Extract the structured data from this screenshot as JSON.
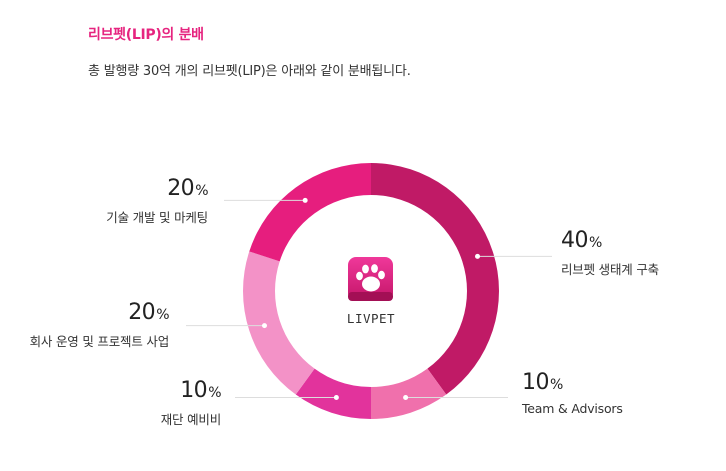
{
  "header": {
    "title": "리브펫(LIP)의 분배",
    "subtitle": "총 발행량 30억 개의 리브펫(LIP)은 아래와 같이 분배됩니다."
  },
  "center": {
    "logo": "paw-logo-icon",
    "text": "LIVPET"
  },
  "chart_data": {
    "type": "pie",
    "variant": "donut",
    "unit": "%",
    "series": [
      {
        "label": "리브펫 생태계 구축",
        "value": 40,
        "display": "40",
        "color": "#c01a66"
      },
      {
        "label": "Team & Advisors",
        "value": 10,
        "display": "10",
        "color": "#f070ac"
      },
      {
        "label": "재단 예비비",
        "value": 10,
        "display": "10",
        "color": "#e2339c"
      },
      {
        "label": "회사 운영 및 프로젝트 사업",
        "value": 20,
        "display": "20",
        "color": "#f392c7"
      },
      {
        "label": "기술 개발 및 마케팅",
        "value": 20,
        "display": "20",
        "color": "#e61e7e"
      }
    ]
  },
  "colors": {
    "accent": "#e6247f",
    "text": "#333333",
    "leader_line": "#dddddd"
  }
}
